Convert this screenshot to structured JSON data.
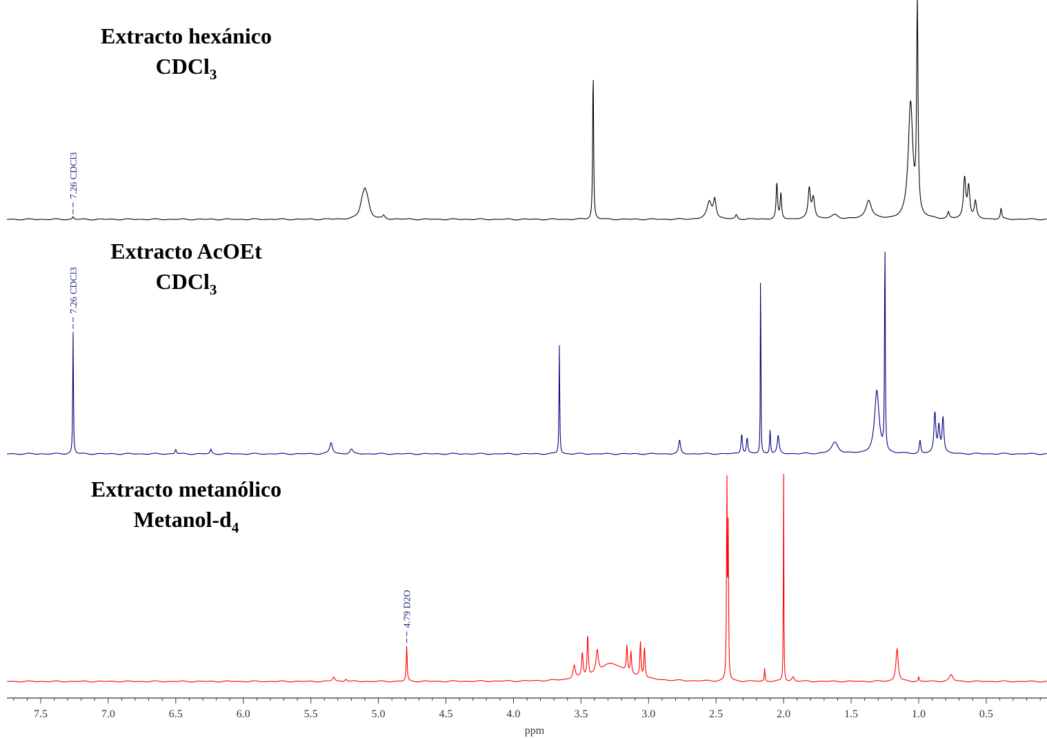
{
  "chart_data": {
    "type": "line",
    "xlabel": "ppm",
    "xlim": [
      7.75,
      0.05
    ],
    "x_reversed": true,
    "xticks": [
      "7.5",
      "7.0",
      "6.5",
      "6.0",
      "5.5",
      "5.0",
      "4.5",
      "4.0",
      "3.5",
      "3.0",
      "2.5",
      "2.0",
      "1.5",
      "1.0",
      "0.5"
    ],
    "xtick_values": [
      7.5,
      7.0,
      6.5,
      6.0,
      5.5,
      5.0,
      4.5,
      4.0,
      3.5,
      3.0,
      2.5,
      2.0,
      1.5,
      1.0,
      0.5
    ],
    "grid": false,
    "series": [
      {
        "title_line1": "Extracto hexánico",
        "title_line2": "CDCl",
        "title_sub": "3",
        "color": "#000000",
        "annotation": "7.26 CDCl3",
        "annotation_ppm": 7.26,
        "peaks": [
          {
            "ppm": 7.26,
            "h": 0.012,
            "w": 0.006
          },
          {
            "ppm": 5.12,
            "h": 0.06,
            "w": 0.02
          },
          {
            "ppm": 5.1,
            "h": 0.09,
            "w": 0.018
          },
          {
            "ppm": 5.08,
            "h": 0.06,
            "w": 0.02
          },
          {
            "ppm": 4.96,
            "h": 0.015,
            "w": 0.01
          },
          {
            "ppm": 3.41,
            "h": 0.72,
            "w": 0.004
          },
          {
            "ppm": 2.55,
            "h": 0.08,
            "w": 0.02
          },
          {
            "ppm": 2.51,
            "h": 0.09,
            "w": 0.012
          },
          {
            "ppm": 2.35,
            "h": 0.02,
            "w": 0.008
          },
          {
            "ppm": 2.05,
            "h": 0.17,
            "w": 0.006
          },
          {
            "ppm": 2.02,
            "h": 0.12,
            "w": 0.006
          },
          {
            "ppm": 1.81,
            "h": 0.14,
            "w": 0.01
          },
          {
            "ppm": 1.78,
            "h": 0.1,
            "w": 0.012
          },
          {
            "ppm": 1.62,
            "h": 0.02,
            "w": 0.03
          },
          {
            "ppm": 1.37,
            "h": 0.09,
            "w": 0.025
          },
          {
            "ppm": 1.06,
            "h": 0.55,
            "w": 0.02
          },
          {
            "ppm": 1.01,
            "h": 0.99,
            "w": 0.006
          },
          {
            "ppm": 0.78,
            "h": 0.03,
            "w": 0.008
          },
          {
            "ppm": 0.66,
            "h": 0.19,
            "w": 0.01
          },
          {
            "ppm": 0.63,
            "h": 0.15,
            "w": 0.01
          },
          {
            "ppm": 0.58,
            "h": 0.08,
            "w": 0.01
          },
          {
            "ppm": 0.39,
            "h": 0.05,
            "w": 0.006
          }
        ]
      },
      {
        "title_line1": "Extracto AcOEt",
        "title_line2": "CDCl",
        "title_sub": "3",
        "color": "#000080",
        "annotation": "7.26 CDCl3",
        "annotation_ppm": 7.26,
        "peaks": [
          {
            "ppm": 7.26,
            "h": 0.55,
            "w": 0.003
          },
          {
            "ppm": 6.5,
            "h": 0.02,
            "w": 0.006
          },
          {
            "ppm": 6.24,
            "h": 0.02,
            "w": 0.006
          },
          {
            "ppm": 5.35,
            "h": 0.05,
            "w": 0.012
          },
          {
            "ppm": 5.2,
            "h": 0.02,
            "w": 0.012
          },
          {
            "ppm": 3.66,
            "h": 0.49,
            "w": 0.003
          },
          {
            "ppm": 2.77,
            "h": 0.06,
            "w": 0.008
          },
          {
            "ppm": 2.31,
            "h": 0.09,
            "w": 0.006
          },
          {
            "ppm": 2.27,
            "h": 0.07,
            "w": 0.006
          },
          {
            "ppm": 2.17,
            "h": 0.99,
            "w": 0.002
          },
          {
            "ppm": 2.1,
            "h": 0.11,
            "w": 0.004
          },
          {
            "ppm": 2.04,
            "h": 0.08,
            "w": 0.008
          },
          {
            "ppm": 1.62,
            "h": 0.05,
            "w": 0.03
          },
          {
            "ppm": 1.31,
            "h": 0.28,
            "w": 0.02
          },
          {
            "ppm": 1.25,
            "h": 1.0,
            "w": 0.003
          },
          {
            "ppm": 0.99,
            "h": 0.06,
            "w": 0.006
          },
          {
            "ppm": 0.88,
            "h": 0.18,
            "w": 0.008
          },
          {
            "ppm": 0.85,
            "h": 0.12,
            "w": 0.008
          },
          {
            "ppm": 0.82,
            "h": 0.16,
            "w": 0.008
          }
        ]
      },
      {
        "title_line1": "Extracto metanólico",
        "title_line2": "Metanol-d",
        "title_sub": "4",
        "color": "#ff0000",
        "annotation": "4.79 D2O",
        "annotation_ppm": 4.79,
        "peaks": [
          {
            "ppm": 5.33,
            "h": 0.02,
            "w": 0.01
          },
          {
            "ppm": 5.24,
            "h": 0.012,
            "w": 0.008
          },
          {
            "ppm": 4.79,
            "h": 0.16,
            "w": 0.004
          },
          {
            "ppm": 3.55,
            "h": 0.06,
            "w": 0.01
          },
          {
            "ppm": 3.49,
            "h": 0.11,
            "w": 0.006
          },
          {
            "ppm": 3.45,
            "h": 0.19,
            "w": 0.005
          },
          {
            "ppm": 3.38,
            "h": 0.1,
            "w": 0.01
          },
          {
            "ppm": 3.27,
            "h": 0.08,
            "w": 0.12
          },
          {
            "ppm": 3.16,
            "h": 0.12,
            "w": 0.005
          },
          {
            "ppm": 3.13,
            "h": 0.1,
            "w": 0.005
          },
          {
            "ppm": 3.06,
            "h": 0.16,
            "w": 0.005
          },
          {
            "ppm": 3.03,
            "h": 0.14,
            "w": 0.005
          },
          {
            "ppm": 2.42,
            "h": 0.92,
            "w": 0.003
          },
          {
            "ppm": 2.41,
            "h": 0.66,
            "w": 0.003
          },
          {
            "ppm": 2.14,
            "h": 0.06,
            "w": 0.003
          },
          {
            "ppm": 2.0,
            "h": 0.99,
            "w": 0.002
          },
          {
            "ppm": 1.93,
            "h": 0.02,
            "w": 0.01
          },
          {
            "ppm": 1.16,
            "h": 0.15,
            "w": 0.01
          },
          {
            "ppm": 1.0,
            "h": 0.02,
            "w": 0.004
          },
          {
            "ppm": 0.76,
            "h": 0.03,
            "w": 0.015
          }
        ]
      }
    ]
  }
}
